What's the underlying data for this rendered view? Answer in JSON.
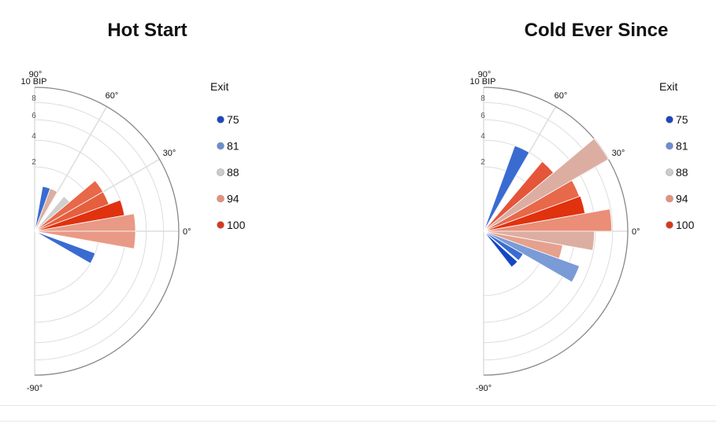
{
  "chart_data": [
    {
      "type": "polar-bar",
      "title": "Hot Start",
      "radial_unit": "BIP",
      "radial_max": 10,
      "radial_max_label": "10 BIP",
      "radial_scale": "sqrt",
      "radial_ticks": [
        "2",
        "4",
        "6",
        "8"
      ],
      "angle_labels": [
        "90°",
        "60°",
        "30°",
        "0°",
        "-90°"
      ],
      "angle_range": [
        -90,
        90
      ],
      "legend": {
        "title": "Exit",
        "placement": "right",
        "items": [
          {
            "label": "75",
            "color": "#1a47c2"
          },
          {
            "label": "81",
            "color": "#6a8dd3"
          },
          {
            "label": "88",
            "color": "#cccccc"
          },
          {
            "label": "94",
            "color": "#ea8f7a"
          },
          {
            "label": "100",
            "color": "#d9381c"
          }
        ]
      },
      "bars": [
        {
          "angle_from": 70,
          "angle_to": 80,
          "value": 1.0,
          "color": "#3a6bd1"
        },
        {
          "angle_from": 60,
          "angle_to": 70,
          "value": 1.0,
          "color": "#dcaea2"
        },
        {
          "angle_from": 40,
          "angle_to": 50,
          "value": 1.0,
          "color": "#cfcfcf"
        },
        {
          "angle_from": 30,
          "angle_to": 40,
          "value": 3.0,
          "color": "#e8684a"
        },
        {
          "angle_from": 20,
          "angle_to": 30,
          "value": 3.0,
          "color": "#e55f3f"
        },
        {
          "angle_from": 10,
          "angle_to": 20,
          "value": 4.0,
          "color": "#e0320f"
        },
        {
          "angle_from": 0,
          "angle_to": 10,
          "value": 4.9,
          "color": "#e89a86"
        },
        {
          "angle_from": -10,
          "angle_to": 0,
          "value": 4.9,
          "color": "#e89a86"
        },
        {
          "angle_from": -30,
          "angle_to": -20,
          "value": 2.0,
          "color": "#3a6bd1"
        }
      ]
    },
    {
      "type": "polar-bar",
      "title": "Cold Ever Since",
      "radial_unit": "BIP",
      "radial_max": 10,
      "radial_max_label": "10 BIP",
      "radial_scale": "sqrt",
      "radial_ticks": [
        "2",
        "4",
        "6",
        "8"
      ],
      "angle_labels": [
        "90°",
        "60°",
        "30°",
        "0°",
        "-90°"
      ],
      "angle_range": [
        -90,
        90
      ],
      "legend": {
        "title": "Exit",
        "placement": "right",
        "items": [
          {
            "label": "75",
            "color": "#1a47c2"
          },
          {
            "label": "81",
            "color": "#6a8dd3"
          },
          {
            "label": "88",
            "color": "#cccccc"
          },
          {
            "label": "94",
            "color": "#ea8f7a"
          },
          {
            "label": "100",
            "color": "#d9381c"
          }
        ]
      },
      "bars": [
        {
          "angle_from": 60,
          "angle_to": 70,
          "value": 4.0,
          "color": "#3a6bd1"
        },
        {
          "angle_from": 40,
          "angle_to": 50,
          "value": 4.0,
          "color": "#e4553a"
        },
        {
          "angle_from": 30,
          "angle_to": 40,
          "value": 10.0,
          "color": "#dcaea2"
        },
        {
          "angle_from": 20,
          "angle_to": 30,
          "value": 5.0,
          "color": "#e8684a"
        },
        {
          "angle_from": 10,
          "angle_to": 20,
          "value": 5.1,
          "color": "#e0320f"
        },
        {
          "angle_from": 0,
          "angle_to": 10,
          "value": 7.9,
          "color": "#ea8e78"
        },
        {
          "angle_from": -10,
          "angle_to": 0,
          "value": 5.9,
          "color": "#dcaea2"
        },
        {
          "angle_from": -20,
          "angle_to": -10,
          "value": 3.1,
          "color": "#e6a08e"
        },
        {
          "angle_from": -30,
          "angle_to": -20,
          "value": 5.0,
          "color": "#7a9bd6"
        },
        {
          "angle_from": -40,
          "angle_to": -30,
          "value": 1.0,
          "color": "#3a6bd1"
        },
        {
          "angle_from": -52,
          "angle_to": -42,
          "value": 1.0,
          "color": "#1546c4"
        }
      ]
    }
  ]
}
